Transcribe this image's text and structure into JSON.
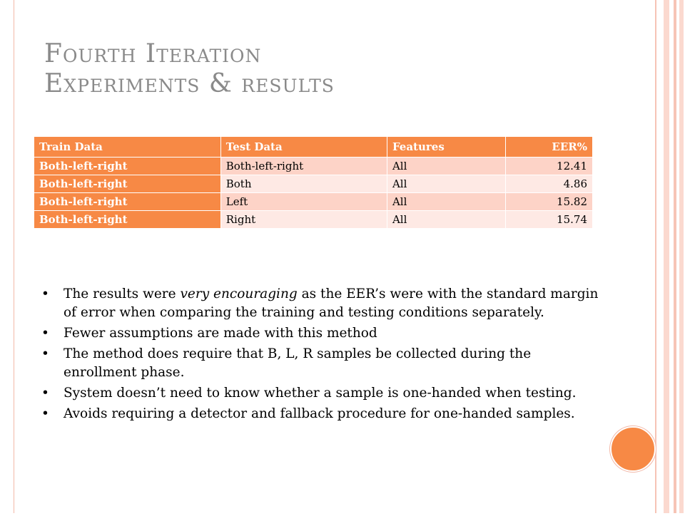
{
  "slide": {
    "title_line1": "Fourth Iteration",
    "title_line2": "Experiments & results"
  },
  "table": {
    "headers": [
      "Train Data",
      "Test Data",
      "Features",
      "EER%"
    ],
    "rows": [
      [
        "Both-left-right",
        "Both-left-right",
        "All",
        "12.41"
      ],
      [
        "Both-left-right",
        "Both",
        "All",
        "4.86"
      ],
      [
        "Both-left-right",
        "Left",
        "All",
        "15.82"
      ],
      [
        "Both-left-right",
        "Right",
        "All",
        "15.74"
      ]
    ]
  },
  "bullets": {
    "b1_before": "The results were ",
    "b1_em": "very encouraging",
    "b1_after": " as the EER’s were with the standard margin of error when comparing the training and testing conditions separately.",
    "b2": "Fewer assumptions are made with this method",
    "b3": "The method does require that B, L, R samples be collected during the enrollment phase.",
    "b4": "System doesn’t need to know whether a sample is one-handed when testing.",
    "b5": "Avoids requiring a detector and fallback procedure for one-handed samples.",
    "marker": "•"
  },
  "colors": {
    "accent": "#f78945",
    "row_light": "#fdd3c7",
    "row_lighter": "#fee9e4",
    "title": "#8a8a8a",
    "frame_line": "#f2b8a8"
  }
}
